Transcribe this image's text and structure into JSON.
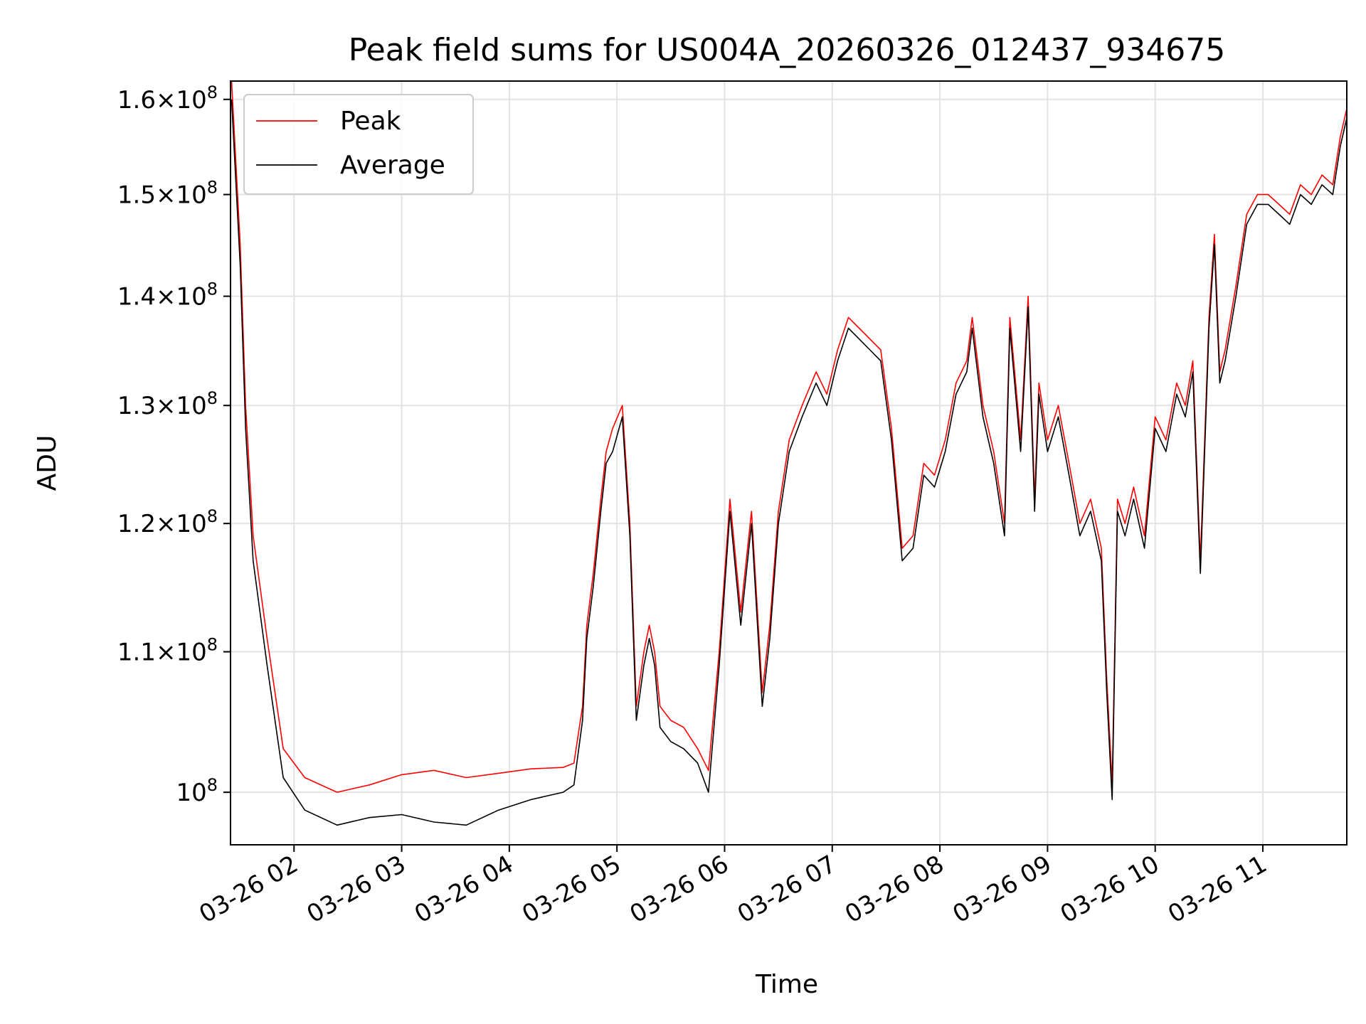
{
  "chart_data": {
    "type": "line",
    "title": "Peak field sums for US004A_20260326_012437_934675",
    "xlabel": "Time",
    "ylabel": "ADU",
    "x_unit": "hours since 2026-03-26 00:00",
    "xlim": [
      1.41,
      11.78
    ],
    "ylim": [
      96500000.0,
      162000000.0
    ],
    "y_scale": "log",
    "grid": true,
    "legend_position": "top-left",
    "x_ticks": [
      {
        "value": 2,
        "label": "03-26 02"
      },
      {
        "value": 3,
        "label": "03-26 03"
      },
      {
        "value": 4,
        "label": "03-26 04"
      },
      {
        "value": 5,
        "label": "03-26 05"
      },
      {
        "value": 6,
        "label": "03-26 06"
      },
      {
        "value": 7,
        "label": "03-26 07"
      },
      {
        "value": 8,
        "label": "03-26 08"
      },
      {
        "value": 9,
        "label": "03-26 09"
      },
      {
        "value": 10,
        "label": "03-26 10"
      },
      {
        "value": 11,
        "label": "03-26 11"
      }
    ],
    "y_ticks": [
      {
        "value": 100000000.0,
        "mantissa": "",
        "exponent": "8"
      },
      {
        "value": 110000000.0,
        "mantissa": "1.1",
        "exponent": "8"
      },
      {
        "value": 120000000.0,
        "mantissa": "1.2",
        "exponent": "8"
      },
      {
        "value": 130000000.0,
        "mantissa": "1.3",
        "exponent": "8"
      },
      {
        "value": 140000000.0,
        "mantissa": "1.4",
        "exponent": "8"
      },
      {
        "value": 150000000.0,
        "mantissa": "1.5",
        "exponent": "8"
      },
      {
        "value": 160000000.0,
        "mantissa": "1.6",
        "exponent": "8"
      }
    ],
    "x": [
      1.42,
      1.5,
      1.55,
      1.62,
      1.75,
      1.9,
      2.1,
      2.4,
      2.7,
      3.0,
      3.3,
      3.6,
      3.9,
      4.2,
      4.5,
      4.6,
      4.68,
      4.72,
      4.78,
      4.85,
      4.9,
      4.96,
      5.05,
      5.12,
      5.18,
      5.25,
      5.3,
      5.35,
      5.4,
      5.5,
      5.62,
      5.75,
      5.85,
      5.95,
      6.05,
      6.15,
      6.25,
      6.35,
      6.42,
      6.5,
      6.6,
      6.72,
      6.85,
      6.95,
      7.05,
      7.15,
      7.25,
      7.35,
      7.45,
      7.55,
      7.65,
      7.75,
      7.85,
      7.95,
      8.05,
      8.15,
      8.25,
      8.3,
      8.4,
      8.5,
      8.6,
      8.65,
      8.75,
      8.82,
      8.88,
      8.92,
      9.0,
      9.1,
      9.2,
      9.3,
      9.4,
      9.5,
      9.55,
      9.6,
      9.65,
      9.72,
      9.8,
      9.9,
      10.0,
      10.1,
      10.2,
      10.28,
      10.35,
      10.42,
      10.5,
      10.55,
      10.6,
      10.65,
      10.75,
      10.85,
      10.95,
      11.05,
      11.15,
      11.25,
      11.35,
      11.45,
      11.55,
      11.65,
      11.72,
      11.78
    ],
    "series": [
      {
        "name": "Peak",
        "color": "#ff0000",
        "values": [
          162000000.0,
          145000000.0,
          130000000.0,
          119000000.0,
          111000000.0,
          103000000.0,
          101000000.0,
          100000000.0,
          100500000.0,
          101200000.0,
          101500000.0,
          101000000.0,
          101300000.0,
          101600000.0,
          101700000.0,
          102000000.0,
          106000000.0,
          112000000.0,
          116000000.0,
          122000000.0,
          126000000.0,
          128000000.0,
          130000000.0,
          120000000.0,
          106000000.0,
          110000000.0,
          112000000.0,
          110000000.0,
          106000000.0,
          105000000.0,
          104500000.0,
          103000000.0,
          101500000.0,
          110000000.0,
          122000000.0,
          113000000.0,
          121000000.0,
          107000000.0,
          112000000.0,
          121000000.0,
          127000000.0,
          130000000.0,
          133000000.0,
          131000000.0,
          135000000.0,
          138000000.0,
          137000000.0,
          136000000.0,
          135000000.0,
          128000000.0,
          118000000.0,
          119000000.0,
          125000000.0,
          124000000.0,
          127000000.0,
          132000000.0,
          134000000.0,
          138000000.0,
          130000000.0,
          126000000.0,
          120000000.0,
          138000000.0,
          127000000.0,
          140000000.0,
          122000000.0,
          132000000.0,
          127000000.0,
          130000000.0,
          125000000.0,
          120000000.0,
          122000000.0,
          118000000.0,
          108000000.0,
          100500000.0,
          122000000.0,
          120000000.0,
          123000000.0,
          119000000.0,
          129000000.0,
          127000000.0,
          132000000.0,
          130000000.0,
          134000000.0,
          117000000.0,
          138000000.0,
          146000000.0,
          133000000.0,
          135000000.0,
          141000000.0,
          148000000.0,
          150000000.0,
          150000000.0,
          149000000.0,
          148000000.0,
          151000000.0,
          150000000.0,
          152000000.0,
          151000000.0,
          156000000.0,
          159000000.0
        ]
      },
      {
        "name": "Average",
        "color": "#000000",
        "values": [
          160000000.0,
          143000000.0,
          128000000.0,
          117000000.0,
          109000000.0,
          101000000.0,
          98800000.0,
          97800000.0,
          98300000.0,
          98500000.0,
          98000000.0,
          97800000.0,
          98800000.0,
          99500000.0,
          100000000.0,
          100500000.0,
          105000000.0,
          111000000.0,
          115000000.0,
          121000000.0,
          125000000.0,
          126000000.0,
          129000000.0,
          119000000.0,
          105000000.0,
          109000000.0,
          111000000.0,
          109000000.0,
          104500000.0,
          103500000.0,
          103000000.0,
          102000000.0,
          100000000.0,
          109000000.0,
          121000000.0,
          112000000.0,
          120000000.0,
          106000000.0,
          111000000.0,
          120000000.0,
          126000000.0,
          129000000.0,
          132000000.0,
          130000000.0,
          134000000.0,
          137000000.0,
          136000000.0,
          135000000.0,
          134000000.0,
          127000000.0,
          117000000.0,
          118000000.0,
          124000000.0,
          123000000.0,
          126000000.0,
          131000000.0,
          133000000.0,
          137000000.0,
          129000000.0,
          125000000.0,
          119000000.0,
          137000000.0,
          126000000.0,
          139000000.0,
          121000000.0,
          131000000.0,
          126000000.0,
          129000000.0,
          124000000.0,
          119000000.0,
          121000000.0,
          117000000.0,
          107000000.0,
          99500000.0,
          121000000.0,
          119000000.0,
          122000000.0,
          118000000.0,
          128000000.0,
          126000000.0,
          131000000.0,
          129000000.0,
          133000000.0,
          116000000.0,
          137000000.0,
          145000000.0,
          132000000.0,
          134000000.0,
          140000000.0,
          147000000.0,
          149000000.0,
          149000000.0,
          148000000.0,
          147000000.0,
          150000000.0,
          149000000.0,
          151000000.0,
          150000000.0,
          155000000.0,
          158000000.0
        ]
      }
    ]
  }
}
